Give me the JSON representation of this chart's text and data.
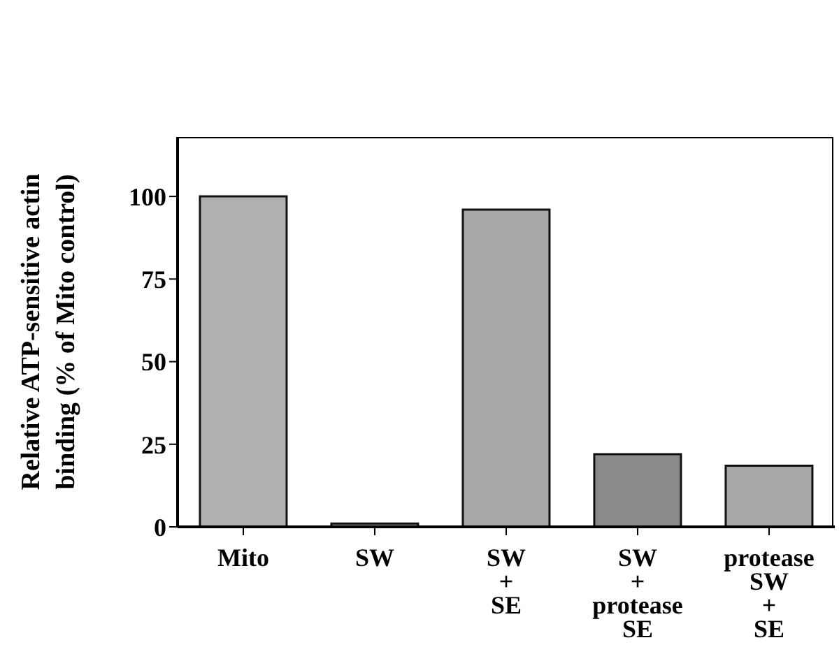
{
  "chart_data": {
    "type": "bar",
    "ylabel": "Relative ATP-sensitive actin\nbinding (% of Mito control)",
    "categories": [
      "Mito",
      "SW",
      "SW\n+\nSE",
      "SW\n+\nprotease\nSE",
      "protease\nSW\n+\nSE"
    ],
    "values": [
      100,
      1,
      96,
      22,
      18.5
    ],
    "colors": [
      "#b0b0b0",
      "#909090",
      "#a8a8a8",
      "#8a8a8a",
      "#a8a8a8"
    ],
    "ylim": [
      0,
      118
    ],
    "yticks": [
      0,
      25,
      50,
      75,
      100
    ]
  }
}
